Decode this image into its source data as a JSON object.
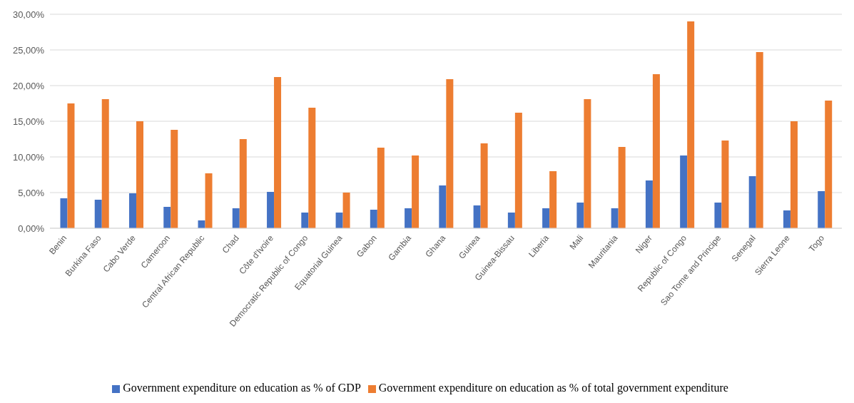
{
  "chart_data": {
    "type": "bar",
    "categories": [
      "Benin",
      "Burkina Faso",
      "Cabo Verde",
      "Cameroon",
      "Central African Republic",
      "Chad",
      "Côte d'Ivoire",
      "Democratic Republic of Congo",
      "Equatorial Guinea",
      "Gabon",
      "Gambia",
      "Ghana",
      "Guinea",
      "Guinea-Bissau",
      "Liberia",
      "Mali",
      "Mauritania",
      "Niger",
      "Republic of Congo",
      "Sao Tome and Principe",
      "Senegal",
      "Sierra Leone",
      "Togo"
    ],
    "series": [
      {
        "name": "Government expenditure on education as % of GDP",
        "color": "#4472c4",
        "values": [
          4.2,
          4.0,
          4.9,
          3.0,
          1.1,
          2.8,
          5.1,
          2.2,
          2.2,
          2.6,
          2.8,
          6.0,
          3.2,
          2.2,
          2.8,
          3.6,
          2.8,
          6.7,
          10.2,
          3.6,
          7.3,
          2.5,
          5.2
        ]
      },
      {
        "name": "Government expenditure on education as % of total government expenditure",
        "color": "#ed7d31",
        "values": [
          17.5,
          18.1,
          15.0,
          13.8,
          7.7,
          12.5,
          21.2,
          16.9,
          5.0,
          11.3,
          10.2,
          20.9,
          11.9,
          16.2,
          8.0,
          18.1,
          11.4,
          21.6,
          29.0,
          12.3,
          24.7,
          15.0,
          17.9
        ]
      }
    ],
    "ylim": [
      0,
      30
    ],
    "yticks": [
      {
        "value": 0,
        "label": "0,00%"
      },
      {
        "value": 5,
        "label": "5,00%"
      },
      {
        "value": 10,
        "label": "10,00%"
      },
      {
        "value": 15,
        "label": "15,00%"
      },
      {
        "value": 20,
        "label": "20,00%"
      },
      {
        "value": 25,
        "label": "25,00%"
      },
      {
        "value": 30,
        "label": "30,00%"
      }
    ],
    "grid": "y",
    "legend": "bottom"
  }
}
